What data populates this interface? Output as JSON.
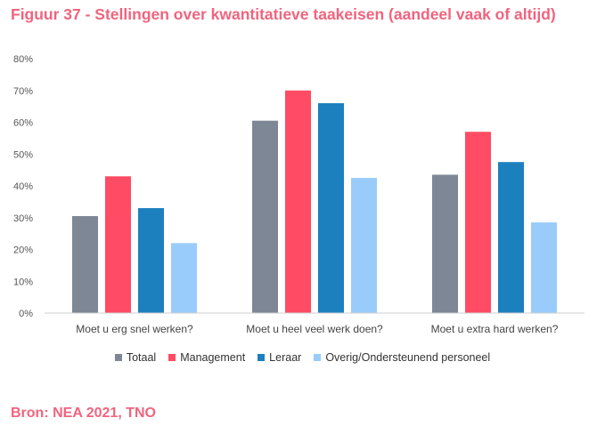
{
  "title": "Figuur 37 - Stellingen over kwantitatieve taakeisen (aandeel vaak of altijd)",
  "source": "Bron: NEA 2021, TNO",
  "chart_data": {
    "type": "bar",
    "categories": [
      "Moet u erg snel werken?",
      "Moet u heel veel werk doen?",
      "Moet u extra hard werken?"
    ],
    "series": [
      {
        "name": "Totaal",
        "color": "#7d8795",
        "values": [
          30.5,
          60.5,
          43.5
        ]
      },
      {
        "name": "Management",
        "color": "#ff4b63",
        "values": [
          43,
          70,
          57
        ]
      },
      {
        "name": "Leraar",
        "color": "#1c80be",
        "values": [
          33,
          66,
          47.5
        ]
      },
      {
        "name": "Overig/Ondersteunend personeel",
        "color": "#99ccfb",
        "values": [
          22,
          42.5,
          28.5
        ]
      }
    ],
    "ylim": [
      0,
      80
    ],
    "yticks": [
      "0%",
      "10%",
      "20%",
      "30%",
      "40%",
      "50%",
      "60%",
      "70%",
      "80%"
    ],
    "grid": false,
    "legend": "bottom"
  }
}
